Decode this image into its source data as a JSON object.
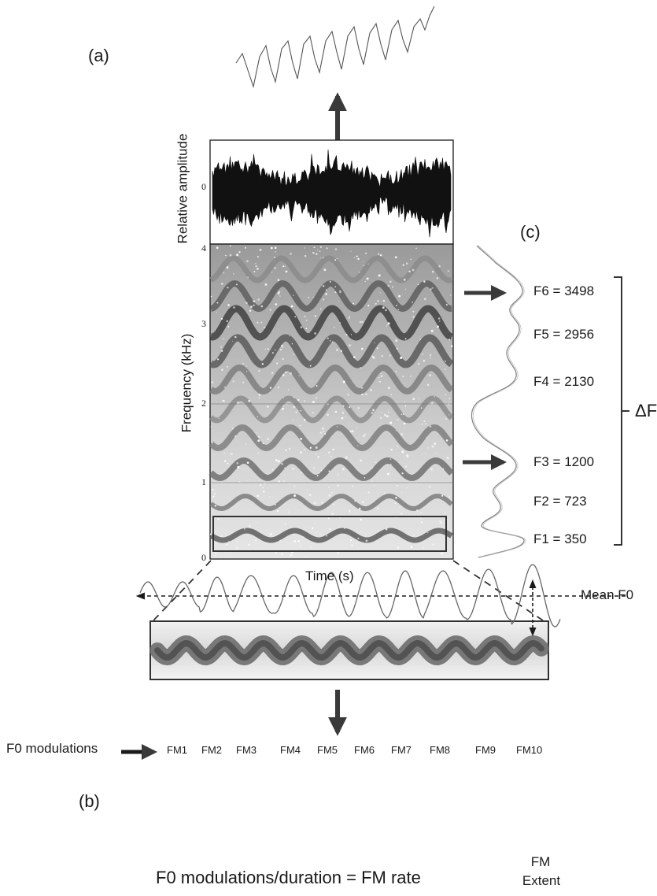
{
  "panel_labels": {
    "a": "(a)",
    "b": "(b)",
    "c": "(c)"
  },
  "waveform": {
    "ylabel": "Relative amplitude",
    "zero_tick": "0"
  },
  "spectrogram": {
    "ylabel": "Frequency (kHz)",
    "xlabel": "Time (s)",
    "yticks": [
      "0",
      "1",
      "2",
      "3",
      "4"
    ]
  },
  "formants": [
    {
      "label": "F6 = 3498"
    },
    {
      "label": "F5 = 2956"
    },
    {
      "label": "F4 = 2130"
    },
    {
      "label": "F3 = 1200"
    },
    {
      "label": "F2 = 723"
    },
    {
      "label": "F1 = 350"
    }
  ],
  "delta_f": "ΔF",
  "f0_modulations_label": "F0 modulations",
  "fm_labels": [
    "FM1",
    "FM2",
    "FM3",
    "FM4",
    "FM5",
    "FM6",
    "FM7",
    "FM8",
    "FM9",
    "FM10"
  ],
  "mean_f0_label": "Mean F0",
  "fm_extent_line1": "FM",
  "fm_extent_line2": "Extent",
  "formula": "F0 modulations/duration = FM rate",
  "colors": {
    "ink": "#1a1a1a",
    "arrow": "#3a3a3a",
    "trace": "#555555"
  }
}
